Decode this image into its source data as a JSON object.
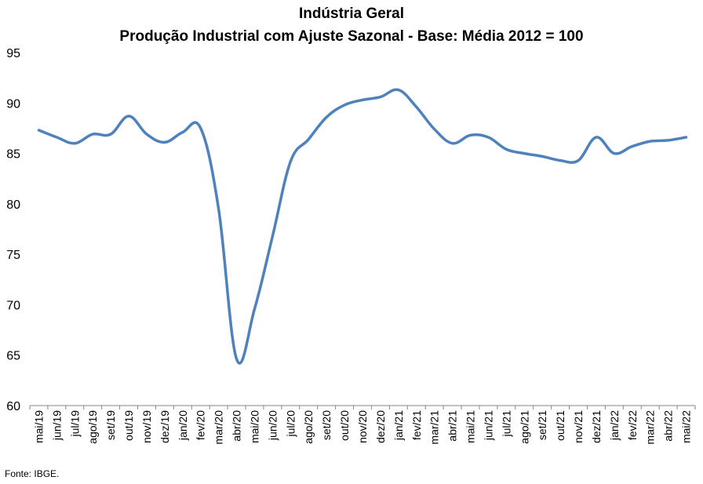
{
  "chart_data": {
    "type": "line",
    "title": "Indústria Geral",
    "subtitle": "Produção Industrial com Ajuste Sazonal - Base: Média 2012 = 100",
    "xlabel": "",
    "ylabel": "",
    "ylim": [
      60,
      95
    ],
    "yticks": [
      60,
      65,
      70,
      75,
      80,
      85,
      90,
      95
    ],
    "grid": false,
    "legend": "none",
    "line_color": "#4F81BD",
    "categories": [
      "mai/19",
      "jun/19",
      "jul/19",
      "ago/19",
      "set/19",
      "out/19",
      "nov/19",
      "dez/19",
      "jan/20",
      "fev/20",
      "mar/20",
      "abr/20",
      "mai/20",
      "jun/20",
      "jul/20",
      "ago/20",
      "set/20",
      "out/20",
      "nov/20",
      "dez/20",
      "jan/21",
      "fev/21",
      "mar/21",
      "abr/21",
      "mai/21",
      "jun/21",
      "jul/21",
      "ago/21",
      "set/21",
      "out/21",
      "nov/21",
      "dez/21",
      "jan/22",
      "fev/22",
      "mar/22",
      "abr/22",
      "mai/22"
    ],
    "series": [
      {
        "values": [
          87.3,
          86.6,
          86.0,
          86.9,
          86.9,
          88.7,
          86.9,
          86.1,
          87.1,
          87.5,
          79.5,
          64.6,
          69.6,
          76.8,
          84.2,
          86.4,
          88.6,
          89.8,
          90.3,
          90.6,
          91.3,
          89.6,
          87.4,
          86.0,
          86.8,
          86.6,
          85.4,
          85.0,
          84.7,
          84.3,
          84.3,
          86.6,
          85.0,
          85.7,
          86.2,
          86.3,
          86.6
        ]
      }
    ]
  },
  "footer": {
    "source": "Fonte: IBGE."
  }
}
